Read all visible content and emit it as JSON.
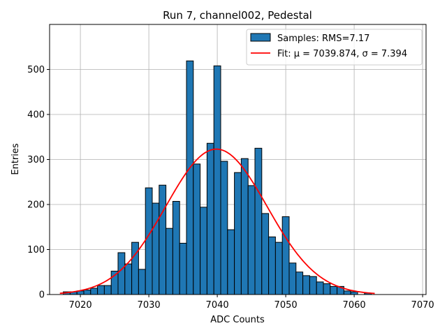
{
  "chart_data": {
    "type": "bar",
    "title": "Run 7, channel002, Pedestal",
    "xlabel": "ADC Counts",
    "ylabel": "Entries",
    "xlim": [
      7015.5,
      7070.5
    ],
    "ylim": [
      0,
      600
    ],
    "xticks": [
      7020,
      7030,
      7040,
      7050,
      7060,
      7070
    ],
    "yticks": [
      0,
      100,
      200,
      300,
      400,
      500
    ],
    "grid": true,
    "legend_placement": "top-right",
    "bin_width": 1,
    "bins": [
      {
        "x": 7018,
        "y": 6
      },
      {
        "x": 7019,
        "y": 6
      },
      {
        "x": 7020,
        "y": 8
      },
      {
        "x": 7021,
        "y": 10
      },
      {
        "x": 7022,
        "y": 14
      },
      {
        "x": 7023,
        "y": 20
      },
      {
        "x": 7024,
        "y": 20
      },
      {
        "x": 7025,
        "y": 52
      },
      {
        "x": 7026,
        "y": 93
      },
      {
        "x": 7027,
        "y": 68
      },
      {
        "x": 7028,
        "y": 116
      },
      {
        "x": 7029,
        "y": 56
      },
      {
        "x": 7030,
        "y": 237
      },
      {
        "x": 7031,
        "y": 203
      },
      {
        "x": 7032,
        "y": 243
      },
      {
        "x": 7033,
        "y": 147
      },
      {
        "x": 7034,
        "y": 207
      },
      {
        "x": 7035,
        "y": 114
      },
      {
        "x": 7036,
        "y": 519
      },
      {
        "x": 7037,
        "y": 290
      },
      {
        "x": 7038,
        "y": 194
      },
      {
        "x": 7039,
        "y": 336
      },
      {
        "x": 7040,
        "y": 508
      },
      {
        "x": 7041,
        "y": 296
      },
      {
        "x": 7042,
        "y": 144
      },
      {
        "x": 7043,
        "y": 271
      },
      {
        "x": 7044,
        "y": 302
      },
      {
        "x": 7045,
        "y": 242
      },
      {
        "x": 7046,
        "y": 325
      },
      {
        "x": 7047,
        "y": 180
      },
      {
        "x": 7048,
        "y": 128
      },
      {
        "x": 7049,
        "y": 116
      },
      {
        "x": 7050,
        "y": 173
      },
      {
        "x": 7051,
        "y": 70
      },
      {
        "x": 7052,
        "y": 50
      },
      {
        "x": 7053,
        "y": 42
      },
      {
        "x": 7054,
        "y": 40
      },
      {
        "x": 7055,
        "y": 28
      },
      {
        "x": 7056,
        "y": 24
      },
      {
        "x": 7057,
        "y": 18
      },
      {
        "x": 7058,
        "y": 18
      },
      {
        "x": 7059,
        "y": 8
      },
      {
        "x": 7060,
        "y": 6
      },
      {
        "x": 7062,
        "y": 3
      }
    ],
    "fit": {
      "mu": 7039.874,
      "sigma": 7.394,
      "amplitude": 323,
      "x_range": [
        7017,
        7063
      ]
    },
    "series": [
      {
        "name": "Samples: RMS=7.17",
        "type": "histogram",
        "color": "#1f77b4",
        "edgecolor": "#000000"
      },
      {
        "name": "Fit: μ = 7039.874, σ = 7.394",
        "type": "line",
        "color": "#ff0000"
      }
    ]
  }
}
